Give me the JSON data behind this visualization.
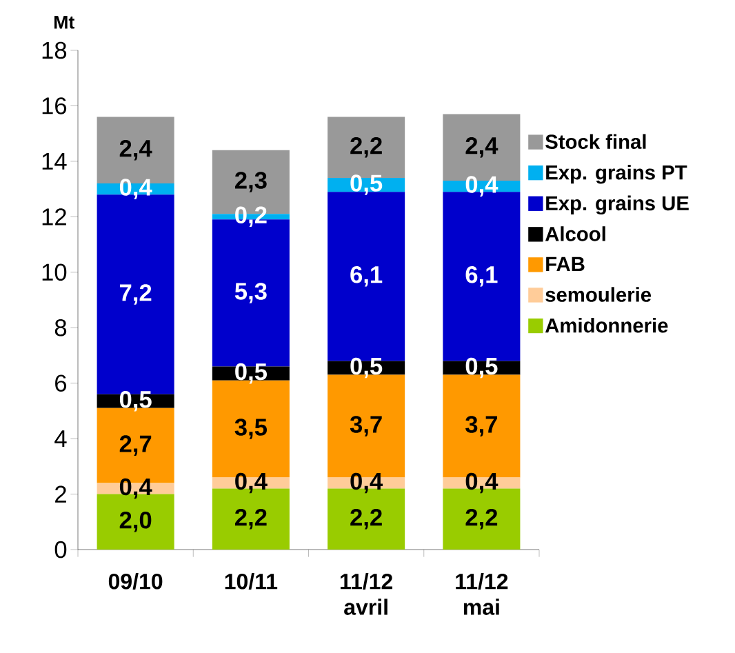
{
  "chart_data": {
    "type": "bar",
    "stacked": true,
    "ylabel": "Mt",
    "categories": [
      "09/10",
      "10/11",
      "11/12 avril",
      "11/12 mai"
    ],
    "ylim": [
      0,
      18
    ],
    "yticks": [
      0,
      2,
      4,
      6,
      8,
      10,
      12,
      14,
      16,
      18
    ],
    "legend": "right",
    "series": [
      {
        "name": "Amidonnerie",
        "color": "#99cc00",
        "values": [
          2.0,
          2.2,
          2.2,
          2.2
        ],
        "value_labels": [
          "2,0",
          "2,2",
          "2,2",
          "2,2"
        ]
      },
      {
        "name": "semoulerie",
        "color": "#ffcc99",
        "values": [
          0.4,
          0.4,
          0.4,
          0.4
        ],
        "value_labels": [
          "0,4",
          "0,4",
          "0,4",
          "0,4"
        ]
      },
      {
        "name": "FAB",
        "color": "#ff9900",
        "values": [
          2.7,
          3.5,
          3.7,
          3.7
        ],
        "value_labels": [
          "2,7",
          "3,5",
          "3,7",
          "3,7"
        ]
      },
      {
        "name": "Alcool",
        "color": "#000000",
        "values": [
          0.5,
          0.5,
          0.5,
          0.5
        ],
        "value_labels": [
          "0,5",
          "0,5",
          "0,5",
          "0,5"
        ]
      },
      {
        "name": "Exp. grains UE",
        "color": "#0000cc",
        "values": [
          7.2,
          5.3,
          6.1,
          6.1
        ],
        "value_labels": [
          "7,2",
          "5,3",
          "6,1",
          "6,1"
        ]
      },
      {
        "name": "Exp. grains PT",
        "color": "#00b0f0",
        "values": [
          0.4,
          0.2,
          0.5,
          0.4
        ],
        "value_labels": [
          "0,4",
          "0,2",
          "0,5",
          "0,4"
        ]
      },
      {
        "name": "Stock final",
        "color": "#999999",
        "values": [
          2.4,
          2.3,
          2.2,
          2.4
        ],
        "value_labels": [
          "2,4",
          "2,3",
          "2,2",
          "2,4"
        ]
      }
    ]
  }
}
